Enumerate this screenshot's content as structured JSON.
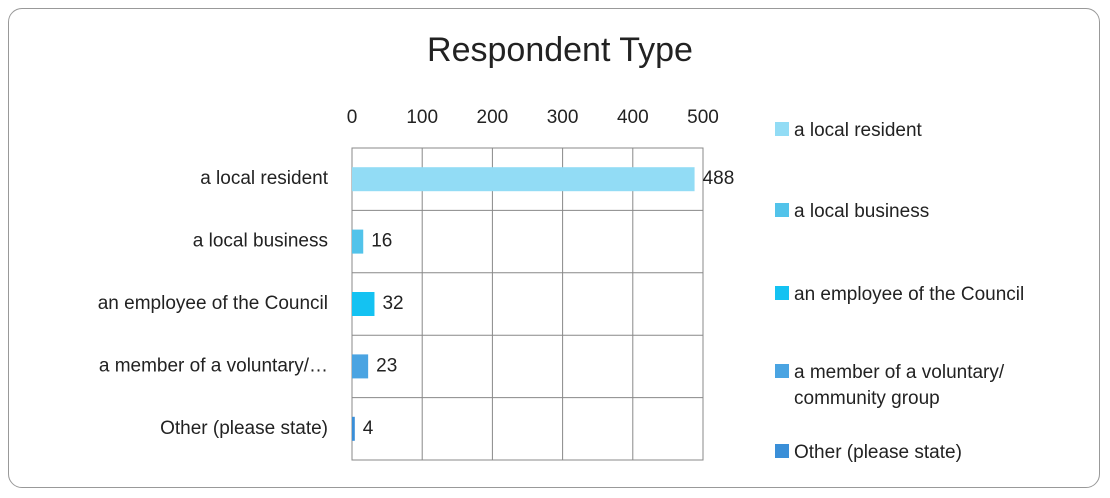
{
  "chart_data": {
    "type": "bar",
    "orientation": "horizontal",
    "title": "Respondent Type",
    "categories": [
      "a local resident",
      "a local business",
      "an employee of the Council",
      "a member of a voluntary/…",
      "Other (please state)"
    ],
    "values": [
      488,
      16,
      32,
      23,
      4
    ],
    "colors": [
      "#92dcf5",
      "#52c3ea",
      "#14c2f2",
      "#4aa4e2",
      "#3a8fd8"
    ],
    "legend": [
      "a local resident",
      "a local business",
      "an employee of the Council",
      "a member of a voluntary/ community group",
      "Other (please state)"
    ],
    "xlim": [
      0,
      500
    ],
    "xticks": [
      0,
      100,
      200,
      300,
      400,
      500
    ],
    "grid": true,
    "legend_position": "right"
  }
}
